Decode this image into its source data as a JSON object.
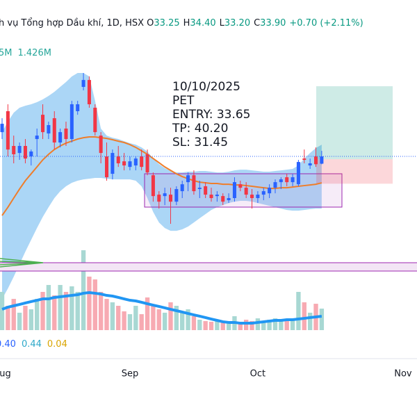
{
  "chart_data": {
    "type": "candlestick",
    "title": "h vụ Tổng hợp Dầu khí, 1D, HSX",
    "ohlc_legend": [
      {
        "label": "O",
        "value": "33.25"
      },
      {
        "label": "H",
        "value": "34.40"
      },
      {
        "label": "L",
        "value": "33.20"
      },
      {
        "label": "C",
        "value": "33.90"
      }
    ],
    "change": "+0.70 (+2.11%)",
    "volume_legend": [
      "5M",
      "1.426M"
    ],
    "macd_legend": [
      {
        "text": "0.40",
        "color": "#2962ff"
      },
      {
        "text": "0.44",
        "color": "#2ea8c9"
      },
      {
        "text": "0.04",
        "color": "#d9a400"
      }
    ],
    "annotation": [
      "10/10/2025",
      "PET",
      "ENTRY: 33.65",
      "TP: 40.20",
      "SL: 31.45"
    ],
    "position": {
      "entry": 33.65,
      "tp": 40.2,
      "sl": 31.45
    },
    "xlim": [
      -0.36,
      71.4
    ],
    "xticks": [
      {
        "value": 0,
        "label": "Aug"
      },
      {
        "value": 22,
        "label": "Sep"
      },
      {
        "value": 44,
        "label": "Oct"
      },
      {
        "value": 69,
        "label": "Nov"
      }
    ],
    "ylim": [
      10.51,
      47.94
    ],
    "y2lim": [
      0,
      33.93
    ],
    "up_color": "#2962ff",
    "down_color": "#f23645",
    "volume_up_color": "#a8d8d3",
    "volume_down_color": "#f7aab2",
    "open": [
      36.08,
      37.96,
      34.84,
      34.21,
      34.84,
      33.9,
      35.46,
      37.64,
      35.96,
      37.33,
      35.15,
      36.4,
      35.46,
      37.96,
      40.14,
      40.76,
      38.27,
      35.77,
      33.9,
      32.34,
      33.9,
      33.46,
      32.96,
      33.09,
      33.9,
      34.09,
      32.21,
      30.47,
      30.34,
      30.47,
      29.84,
      30.78,
      31.59,
      32.21,
      30.97,
      31.22,
      30.47,
      30.34,
      30.34,
      29.97,
      30.16,
      31.4,
      31.09,
      30.47,
      30.16,
      30.47,
      30.59,
      31.09,
      31.59,
      32.03,
      31.59,
      31.4,
      33.71,
      33.09,
      33.9,
      33.25
    ],
    "high": [
      37.33,
      38.58,
      35.77,
      35.15,
      35.46,
      34.52,
      36.4,
      38.58,
      37.02,
      37.96,
      36.4,
      37.02,
      38.89,
      38.89,
      41.39,
      41.08,
      38.58,
      36.08,
      35.15,
      34.52,
      34.84,
      34.21,
      33.9,
      33.9,
      34.52,
      34.52,
      32.46,
      30.78,
      31.09,
      31.09,
      31.22,
      31.72,
      32.46,
      32.65,
      31.72,
      31.59,
      31.09,
      30.78,
      30.59,
      30.59,
      32.03,
      31.72,
      31.59,
      30.97,
      30.78,
      31.09,
      31.4,
      31.84,
      32.03,
      32.34,
      32.34,
      33.59,
      34.52,
      33.71,
      34.71,
      34.4
    ],
    "low": [
      35.46,
      33.9,
      33.28,
      33.59,
      33.28,
      33.09,
      33.9,
      35.46,
      35.46,
      34.52,
      34.71,
      34.84,
      35.15,
      37.64,
      39.83,
      38.27,
      35.77,
      33.28,
      31.72,
      31.84,
      32.96,
      32.65,
      32.65,
      32.65,
      32.65,
      32.21,
      29.84,
      29.22,
      29.53,
      27.85,
      29.53,
      30.16,
      30.78,
      30.47,
      30.16,
      30.16,
      29.84,
      29.84,
      29.53,
      29.72,
      29.84,
      30.78,
      30.16,
      29.22,
      29.72,
      29.97,
      30.16,
      30.59,
      30.97,
      31.22,
      31.22,
      31.22,
      33.28,
      32.78,
      32.96,
      33.2
    ],
    "close": [
      36.83,
      34.52,
      34.09,
      34.84,
      33.71,
      34.34,
      35.77,
      36.08,
      36.71,
      35.15,
      36.08,
      35.46,
      38.58,
      38.58,
      40.76,
      38.58,
      36.08,
      34.21,
      32.03,
      34.21,
      33.28,
      33.09,
      33.46,
      33.71,
      32.96,
      32.46,
      30.34,
      29.84,
      30.59,
      29.84,
      30.97,
      31.4,
      32.21,
      30.78,
      31.09,
      30.47,
      30.16,
      30.47,
      29.84,
      30.16,
      31.59,
      31.09,
      30.47,
      30.16,
      30.47,
      30.78,
      31.09,
      31.59,
      31.84,
      31.59,
      32.03,
      33.4,
      33.59,
      33.28,
      33.2,
      33.9
    ],
    "volume": [
      3.93,
      2.5,
      3.21,
      1.79,
      2.5,
      2.14,
      3.21,
      3.93,
      4.64,
      3.57,
      4.64,
      3.93,
      4.5,
      3.93,
      8.21,
      5.5,
      5.21,
      3.93,
      3.21,
      2.86,
      2.5,
      1.93,
      1.64,
      2.5,
      1.64,
      3.36,
      2.5,
      2.14,
      1.79,
      2.86,
      2.5,
      1.93,
      2.14,
      1.43,
      1.07,
      0.93,
      0.86,
      1.07,
      0.93,
      0.71,
      1.43,
      0.86,
      1.07,
      0.93,
      1.21,
      0.93,
      1.07,
      1.21,
      1.07,
      0.93,
      1.21,
      3.93,
      2.86,
      1.79,
      2.71,
      2.21
    ],
    "volume_ma": {
      "color": "#2196f3",
      "values": [
        2.14,
        2.36,
        2.5,
        2.64,
        2.79,
        2.93,
        3.07,
        3.21,
        3.21,
        3.36,
        3.43,
        3.5,
        3.57,
        3.64,
        3.79,
        3.86,
        3.79,
        3.71,
        3.57,
        3.5,
        3.36,
        3.21,
        3.07,
        3.0,
        2.86,
        2.71,
        2.57,
        2.43,
        2.29,
        2.14,
        2.0,
        1.86,
        1.71,
        1.57,
        1.43,
        1.29,
        1.14,
        1.0,
        0.86,
        0.79,
        0.79,
        0.71,
        0.71,
        0.71,
        0.79,
        0.86,
        0.93,
        1.0,
        1.0,
        1.07,
        1.07,
        1.14,
        1.21,
        1.29,
        1.36,
        1.426
      ]
    },
    "ma": {
      "color": "#ef7d2a",
      "values": [
        28.6,
        29.34,
        30.16,
        30.97,
        31.72,
        32.34,
        32.96,
        33.59,
        34.09,
        34.52,
        34.84,
        35.09,
        35.27,
        35.46,
        35.58,
        35.65,
        35.65,
        35.58,
        35.52,
        35.4,
        35.27,
        35.15,
        34.96,
        34.71,
        34.4,
        34.09,
        33.71,
        33.34,
        32.96,
        32.65,
        32.34,
        32.09,
        31.9,
        31.72,
        31.59,
        31.53,
        31.47,
        31.47,
        31.4,
        31.4,
        31.34,
        31.34,
        31.28,
        31.22,
        31.15,
        31.09,
        31.03,
        31.03,
        31.09,
        31.09,
        31.15,
        31.22,
        31.28,
        31.34,
        31.4,
        31.53
      ]
    },
    "bollinger": {
      "color": "#8fc8f3",
      "upper": [
        36.08,
        37.02,
        37.83,
        38.27,
        38.45,
        38.58,
        38.77,
        39.02,
        39.33,
        39.7,
        40.14,
        40.58,
        41.08,
        41.39,
        41.39,
        41.08,
        38.89,
        36.4,
        35.77,
        35.58,
        35.46,
        35.27,
        35.09,
        34.96,
        34.71,
        34.34,
        33.71,
        33.21,
        32.84,
        32.59,
        32.46,
        32.46,
        32.53,
        32.53,
        32.59,
        32.59,
        32.53,
        32.46,
        32.46,
        32.53,
        32.65,
        32.71,
        32.71,
        32.65,
        32.59,
        32.53,
        32.53,
        32.59,
        32.65,
        32.71,
        32.78,
        33.09,
        33.71,
        34.21,
        34.65,
        34.96
      ],
      "lower": [
        21.11,
        22.04,
        23.1,
        24.23,
        25.35,
        26.41,
        27.47,
        28.47,
        29.34,
        30.16,
        30.78,
        31.22,
        31.53,
        31.72,
        31.84,
        31.9,
        31.97,
        31.97,
        31.9,
        31.84,
        31.84,
        31.84,
        31.84,
        31.72,
        31.22,
        30.16,
        28.91,
        27.97,
        27.47,
        27.22,
        27.22,
        27.35,
        27.6,
        27.97,
        28.35,
        28.72,
        29.09,
        29.34,
        29.53,
        29.72,
        29.84,
        29.91,
        29.91,
        29.84,
        29.72,
        29.59,
        29.47,
        29.34,
        29.22,
        29.09,
        29.03,
        29.03,
        29.09,
        29.16,
        29.22,
        29.22
      ]
    }
  }
}
